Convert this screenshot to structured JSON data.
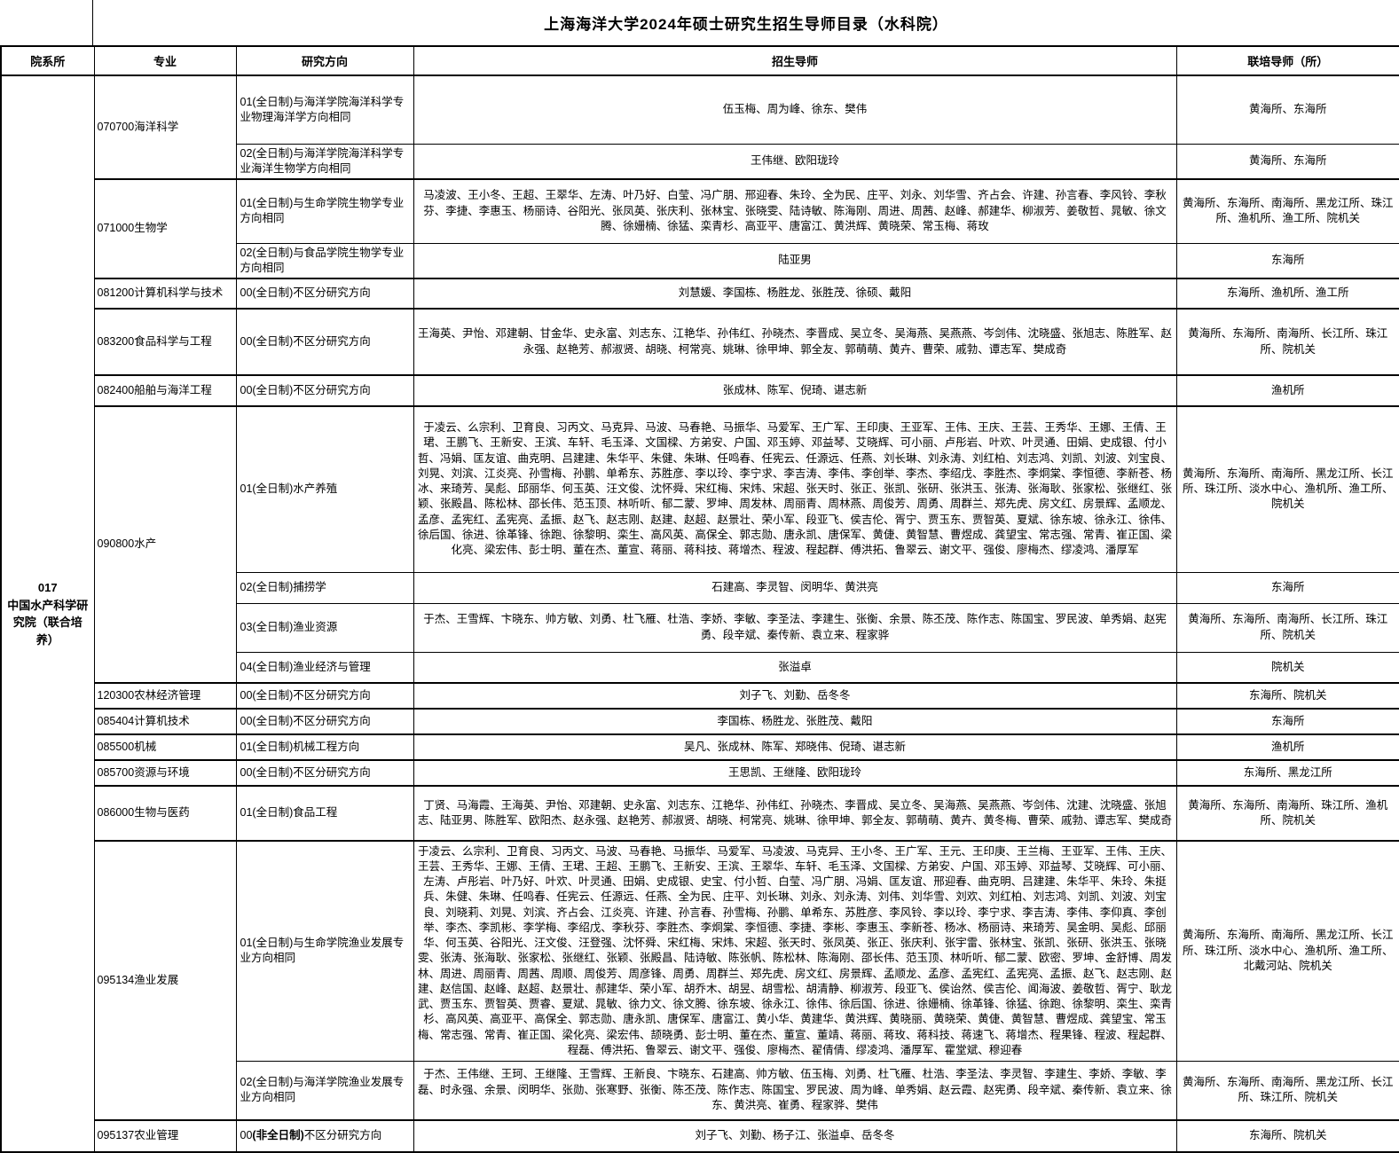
{
  "title": "上海海洋大学2024年硕士研究生招生导师目录（水科院）",
  "columns": [
    "院系所",
    "专业",
    "研究方向",
    "招生导师",
    "联培导师（所）"
  ],
  "department": {
    "code": "017",
    "name": "中国水产科学研究院（联合培养）"
  },
  "majors": [
    {
      "name": "070700海洋科学",
      "directions": [
        {
          "direction": "01(全日制)与海洋学院海洋科学专业物理海洋学方向相同",
          "supervisors": "伍玉梅、周为峰、徐东、樊伟",
          "joint": "黄海所、东海所"
        },
        {
          "direction": "02(全日制)与海洋学院海洋科学专业海洋生物学方向相同",
          "supervisors": "王伟继、欧阳珑玲",
          "joint": "黄海所、东海所"
        }
      ]
    },
    {
      "name": "071000生物学",
      "directions": [
        {
          "direction": "01(全日制)与生命学院生物学专业方向相同",
          "supervisors": "马凌波、王小冬、王超、王翠华、左涛、叶乃好、白莹、冯广朋、邢迎春、朱玲、全为民、庄平、刘永、刘华雪、齐占会、许建、孙言春、李风铃、李秋芬、李捷、李惠玉、杨丽诗、谷阳光、张凤英、张庆利、张林宝、张晓雯、陆诗敏、陈海刚、周进、周茜、赵峰、郝建华、柳淑芳、姜敬哲、晁敏、徐文腾、徐姗楠、徐猛、栾青杉、高亚平、唐富江、黄洪辉、黄晓荣、常玉梅、蒋玫",
          "joint": "黄海所、东海所、南海所、黑龙江所、珠江所、渔机所、渔工所、院机关"
        },
        {
          "direction": "02(全日制)与食品学院生物学专业方向相同",
          "supervisors": "陆亚男",
          "joint": "东海所"
        }
      ]
    },
    {
      "name": "081200计算机科学与技术",
      "directions": [
        {
          "direction": "00(全日制)不区分研究方向",
          "supervisors": "刘慧媛、李国栋、杨胜龙、张胜茂、徐硕、戴阳",
          "joint": "东海所、渔机所、渔工所"
        }
      ]
    },
    {
      "name": "083200食品科学与工程",
      "directions": [
        {
          "direction": "00(全日制)不区分研究方向",
          "supervisors": "王海英、尹怡、邓建朝、甘金华、史永富、刘志东、江艳华、孙伟红、孙晓杰、李晋成、吴立冬、吴海燕、吴燕燕、岑剑伟、沈晓盛、张旭志、陈胜军、赵永强、赵艳芳、郝淑贤、胡晓、柯常亮、姚琳、徐甲坤、郭全友、郭萌萌、黄卉、曹荣、戚勃、谭志军、樊成奇",
          "joint": "黄海所、东海所、南海所、长江所、珠江所、院机关"
        }
      ]
    },
    {
      "name": "082400船舶与海洋工程",
      "directions": [
        {
          "direction": "00(全日制)不区分研究方向",
          "supervisors": "张成林、陈军、倪琦、谌志新",
          "joint": "渔机所"
        }
      ]
    },
    {
      "name": "090800水产",
      "directions": [
        {
          "direction": "01(全日制)水产养殖",
          "supervisors": "于凌云、么宗利、卫育良、习丙文、马克异、马波、马春艳、马振华、马爱军、王广军、王印庚、王亚军、王伟、王庆、王芸、王秀华、王娜、王倩、王珺、王鹏飞、王新安、王滨、车轩、毛玉泽、文国樑、方弟安、户国、邓玉婷、邓益琴、艾晓辉、可小丽、卢彤岩、叶欢、叶灵通、田娟、史成银、付小哲、冯娟、匡友谊、曲克明、吕建建、朱华平、朱健、朱琳、任鸣春、任宪云、任源远、任燕、刘长琳、刘永涛、刘红柏、刘志鸿、刘凯、刘波、刘宝良、刘晃、刘滨、江炎亮、孙雪梅、孙鹏、单希东、苏胜彦、李以玲、李宁求、李吉涛、李伟、李创举、李杰、李绍戊、李胜杰、李炯棠、李恒德、李新苍、杨冰、来琦芳、吴彪、邱丽华、何玉英、汪文俊、沈怀舜、宋红梅、宋炜、宋超、张天时、张正、张凯、张研、张洪玉、张涛、张海耿、张家松、张继红、张颖、张殿昌、陈松林、邵长伟、范玉顶、林听听、郁二蒙、罗坤、周发林、周丽青、周林燕、周俊芳、周勇、周群兰、郑先虎、房文红、房景辉、孟顺龙、孟彦、孟宪红、孟宪亮、孟振、赵飞、赵志刚、赵建、赵超、赵景壮、荣小军、段亚飞、侯吉伦、胥宁、贾玉东、贾智英、夏斌、徐东坡、徐永江、徐伟、徐后国、徐进、徐革锋、徐跑、徐黎明、栾生、高风英、高保全、郭志勋、唐永凯、唐保军、黄倢、黄智慧、曹煜成、龚望宝、常志强、常青、崔正国、梁化亮、梁宏伟、彭士明、董在杰、董宣、蒋丽、蒋科技、蒋增杰、程波、程起群、傅洪拓、鲁翠云、谢文平、强俊、廖梅杰、缪凌鸿、潘厚军",
          "joint": "黄海所、东海所、南海所、黑龙江所、长江所、珠江所、淡水中心、渔机所、渔工所、院机关"
        },
        {
          "direction": "02(全日制)捕捞学",
          "supervisors": "石建高、李灵智、闵明华、黄洪亮",
          "joint": "东海所"
        },
        {
          "direction": "03(全日制)渔业资源",
          "supervisors": "于杰、王雪辉、卞晓东、帅方敏、刘勇、杜飞雁、杜浩、李娇、李敏、李圣法、李建生、张衡、余景、陈丕茂、陈作志、陈国宝、罗民波、单秀娟、赵宪勇、段辛斌、秦传新、袁立来、程家骅",
          "joint": "黄海所、东海所、南海所、长江所、珠江所、院机关"
        },
        {
          "direction": "04(全日制)渔业经济与管理",
          "supervisors": "张溢卓",
          "joint": "院机关"
        }
      ]
    },
    {
      "name": "120300农林经济管理",
      "directions": [
        {
          "direction": "00(全日制)不区分研究方向",
          "supervisors": "刘子飞、刘勤、岳冬冬",
          "joint": "东海所、院机关"
        }
      ]
    },
    {
      "name": "085404计算机技术",
      "directions": [
        {
          "direction": "00(全日制)不区分研究方向",
          "supervisors": "李国栋、杨胜龙、张胜茂、戴阳",
          "joint": "东海所"
        }
      ]
    },
    {
      "name": "085500机械",
      "directions": [
        {
          "direction": "01(全日制)机械工程方向",
          "supervisors": "吴凡、张成林、陈军、郑晓伟、倪琦、谌志新",
          "joint": "渔机所"
        }
      ]
    },
    {
      "name": "085700资源与环境",
      "directions": [
        {
          "direction": "00(全日制)不区分研究方向",
          "supervisors": "王思凯、王继隆、欧阳珑玲",
          "joint": "东海所、黑龙江所"
        }
      ]
    },
    {
      "name": "086000生物与医药",
      "directions": [
        {
          "direction": "01(全日制)食品工程",
          "supervisors": "丁贤、马海霞、王海英、尹怡、邓建朝、史永富、刘志东、江艳华、孙伟红、孙晓杰、李晋成、吴立冬、吴海燕、吴燕燕、岑剑伟、沈建、沈晓盛、张旭志、陆亚男、陈胜军、欧阳杰、赵永强、赵艳芳、郝淑贤、胡晓、柯常亮、姚琳、徐甲坤、郭全友、郭萌萌、黄卉、黄冬梅、曹荣、戚勃、谭志军、樊成奇",
          "joint": "黄海所、东海所、南海所、珠江所、渔机所、院机关"
        }
      ]
    },
    {
      "name": "095134渔业发展",
      "directions": [
        {
          "direction": "01(全日制)与生命学院渔业发展专业方向相同",
          "supervisors": "于凌云、么宗利、卫育良、习丙文、马波、马春艳、马振华、马爱军、马凌波、马克异、王小冬、王广军、王元、王印庚、王兰梅、王亚军、王伟、王庆、王芸、王秀华、王娜、王倩、王珺、王超、王鹏飞、王新安、王滨、王翠华、车轩、毛玉泽、文国樑、方弟安、户国、邓玉婷、邓益琴、艾晓辉、可小丽、左涛、卢彤岩、叶乃好、叶欢、叶灵通、田娟、史成银、史宝、付小哲、白莹、冯广朋、冯娟、匡友谊、邢迎春、曲克明、吕建建、朱华平、朱玲、朱挺兵、朱健、朱琳、任鸣春、任宪云、任源远、任燕、全为民、庄平、刘长琳、刘永、刘永涛、刘伟、刘华雪、刘欢、刘红柏、刘志鸿、刘凯、刘波、刘宝良、刘晓莉、刘晃、刘滨、齐占会、江炎亮、许建、孙言春、孙雪梅、孙鹏、单希东、苏胜彦、李风铃、李以玲、李宁求、李吉涛、李伟、李仰真、李创举、李杰、李凯彬、李学梅、李绍戊、李秋芬、李胜杰、李炯棠、李恒德、李捷、李彬、李惠玉、李新苍、杨冰、杨丽诗、来琦芳、吴金明、吴彪、邱丽华、何玉英、谷阳光、汪文俊、汪登强、沈怀舜、宋红梅、宋炜、宋超、张天时、张凤英、张正、张庆利、张宇雷、张林宝、张凯、张研、张洪玉、张晓雯、张涛、张海耿、张家松、张继红、张颖、张殿昌、陆诗敏、陈张帆、陈松林、陈海刚、邵长伟、范玉顶、林听听、郁二蒙、欧密、罗坤、金舒博、周发林、周进、周丽青、周茜、周顺、周俊芳、周彦锋、周勇、周群兰、郑先虎、房文红、房景辉、孟顺龙、孟彦、孟宪红、孟宪亮、孟振、赵飞、赵志刚、赵建、赵信国、赵峰、赵超、赵景壮、郝建华、荣小军、胡乔木、胡昱、胡雪松、胡清静、柳淑芳、段亚飞、侯诒然、侯吉伦、闻海波、姜敬哲、胥宁、耿龙武、贾玉东、贾智英、贾睿、夏斌、晁敏、徐力文、徐文腾、徐东坡、徐永江、徐伟、徐后国、徐进、徐姗楠、徐革锋、徐猛、徐跑、徐黎明、栾生、栾青杉、高风英、高亚平、高保全、郭志勋、唐永凯、唐保军、唐富江、黄小华、黄建华、黄洪辉、黄晓丽、黄晓荣、黄倢、黄智慧、曹煜成、龚望宝、常玉梅、常志强、常青、崔正国、梁化亮、梁宏伟、颉晓勇、彭士明、董在杰、董宣、董靖、蒋丽、蒋玫、蒋科技、蒋速飞、蒋增杰、程果锋、程波、程起群、程磊、傅洪拓、鲁翠云、谢文平、强俊、廖梅杰、翟倩倩、缪凌鸿、潘厚军、霍堂斌、穆迎春",
          "joint": "黄海所、东海所、南海所、黑龙江所、长江所、珠江所、淡水中心、渔机所、渔工所、北戴河站、院机关"
        },
        {
          "direction": "02(全日制)与海洋学院渔业发展专业方向相同",
          "supervisors": "于杰、王伟继、王珂、王继隆、王雪辉、王新良、卞晓东、石建高、帅方敏、伍玉梅、刘勇、杜飞雁、杜浩、李圣法、李灵智、李建生、李娇、李敏、李磊、时永强、余景、闵明华、张勋、张寒野、张衡、陈丕茂、陈作志、陈国宝、罗民波、周为峰、单秀娟、赵云霞、赵宪勇、段辛斌、秦传新、袁立来、徐东、黄洪亮、崔勇、程家骅、樊伟",
          "joint": "黄海所、东海所、南海所、黑龙江所、长江所、珠江所、院机关"
        }
      ]
    },
    {
      "name": "095137农业管理",
      "directions": [
        {
          "direction": "00(非全日制)不区分研究方向",
          "bold": "(非全日制)",
          "supervisors": "刘子飞、刘勤、杨子江、张溢卓、岳冬冬",
          "joint": "东海所、院机关"
        }
      ]
    }
  ]
}
